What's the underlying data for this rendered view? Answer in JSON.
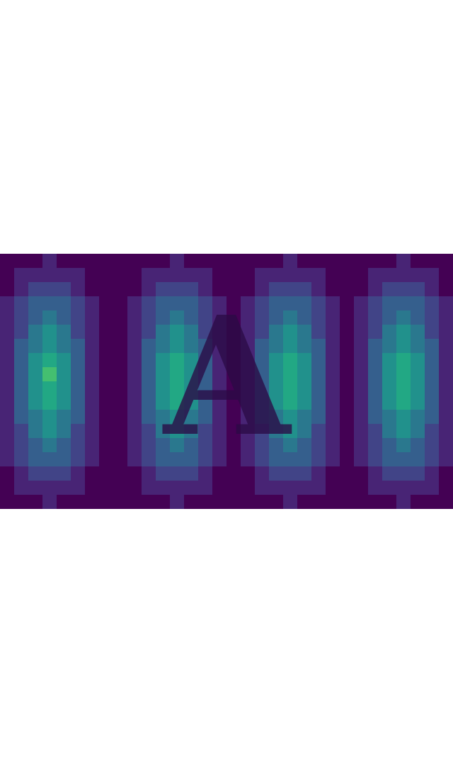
{
  "chart_data": {
    "type": "heatmap",
    "annotation": "A",
    "xlim": [
      0,
      32
    ],
    "ylim": [
      0,
      18
    ],
    "zlim": [
      0,
      10
    ],
    "tick_labels": false,
    "cells": [
      [
        0,
        0,
        0,
        1,
        0,
        0,
        0,
        0,
        0,
        0,
        0,
        0,
        1,
        0,
        0,
        0,
        0,
        0,
        0,
        0,
        1,
        0,
        0,
        0,
        0,
        0,
        0,
        0,
        1,
        0,
        0,
        0
      ],
      [
        0,
        1,
        1,
        1,
        1,
        1,
        0,
        0,
        0,
        0,
        1,
        1,
        1,
        1,
        1,
        0,
        0,
        0,
        1,
        1,
        1,
        1,
        1,
        0,
        0,
        0,
        1,
        1,
        1,
        1,
        1,
        0
      ],
      [
        0,
        1,
        2,
        2,
        2,
        1,
        0,
        0,
        0,
        0,
        1,
        2,
        2,
        2,
        1,
        0,
        0,
        0,
        1,
        2,
        2,
        2,
        1,
        0,
        0,
        0,
        1,
        2,
        2,
        2,
        1,
        0
      ],
      [
        1,
        2,
        3,
        3,
        3,
        2,
        1,
        0,
        0,
        1,
        2,
        3,
        3,
        3,
        2,
        1,
        0,
        1,
        2,
        3,
        3,
        3,
        2,
        1,
        0,
        1,
        2,
        3,
        3,
        3,
        2,
        1
      ],
      [
        1,
        2,
        3,
        4,
        3,
        2,
        1,
        0,
        0,
        1,
        2,
        3,
        4,
        3,
        2,
        1,
        0,
        1,
        2,
        3,
        4,
        3,
        2,
        1,
        0,
        1,
        2,
        3,
        4,
        3,
        2,
        1
      ],
      [
        1,
        2,
        4,
        5,
        4,
        2,
        1,
        0,
        0,
        1,
        2,
        4,
        5,
        4,
        2,
        1,
        0,
        1,
        2,
        4,
        5,
        4,
        2,
        1,
        0,
        1,
        2,
        4,
        5,
        4,
        2,
        1
      ],
      [
        1,
        3,
        4,
        5,
        4,
        3,
        1,
        0,
        0,
        1,
        3,
        4,
        5,
        4,
        3,
        1,
        0,
        1,
        3,
        4,
        5,
        4,
        3,
        1,
        0,
        1,
        3,
        4,
        5,
        4,
        3,
        1
      ],
      [
        1,
        3,
        5,
        6,
        5,
        3,
        1,
        0,
        0,
        1,
        3,
        5,
        6,
        5,
        3,
        1,
        0,
        1,
        3,
        5,
        6,
        5,
        3,
        1,
        0,
        1,
        3,
        5,
        6,
        5,
        3,
        1
      ],
      [
        1,
        3,
        5,
        7,
        5,
        3,
        1,
        0,
        0,
        1,
        3,
        5,
        6,
        5,
        3,
        1,
        0,
        1,
        3,
        5,
        6,
        5,
        3,
        1,
        0,
        1,
        3,
        5,
        6,
        5,
        3,
        1
      ],
      [
        1,
        3,
        5,
        6,
        5,
        3,
        1,
        0,
        0,
        1,
        3,
        5,
        6,
        5,
        3,
        1,
        0,
        1,
        3,
        5,
        6,
        5,
        3,
        1,
        0,
        1,
        3,
        5,
        6,
        5,
        3,
        1
      ],
      [
        1,
        3,
        5,
        6,
        5,
        3,
        1,
        0,
        0,
        1,
        3,
        5,
        6,
        5,
        3,
        1,
        0,
        1,
        3,
        5,
        6,
        5,
        3,
        1,
        0,
        1,
        3,
        5,
        6,
        5,
        3,
        1
      ],
      [
        1,
        3,
        4,
        5,
        4,
        3,
        1,
        0,
        0,
        1,
        3,
        4,
        5,
        4,
        3,
        1,
        0,
        1,
        3,
        4,
        5,
        4,
        3,
        1,
        0,
        1,
        3,
        4,
        5,
        4,
        3,
        1
      ],
      [
        1,
        2,
        4,
        5,
        4,
        2,
        1,
        0,
        0,
        1,
        2,
        4,
        5,
        4,
        2,
        1,
        0,
        1,
        2,
        4,
        5,
        4,
        2,
        1,
        0,
        1,
        2,
        4,
        5,
        4,
        2,
        1
      ],
      [
        1,
        2,
        3,
        4,
        3,
        2,
        1,
        0,
        0,
        1,
        2,
        3,
        4,
        3,
        2,
        1,
        0,
        1,
        2,
        3,
        4,
        3,
        2,
        1,
        0,
        1,
        2,
        3,
        4,
        3,
        2,
        1
      ],
      [
        1,
        2,
        3,
        3,
        3,
        2,
        1,
        0,
        0,
        1,
        2,
        3,
        3,
        3,
        2,
        1,
        0,
        1,
        2,
        3,
        3,
        3,
        2,
        1,
        0,
        1,
        2,
        3,
        3,
        3,
        2,
        1
      ],
      [
        0,
        1,
        2,
        2,
        2,
        1,
        0,
        0,
        0,
        0,
        1,
        2,
        2,
        2,
        1,
        0,
        0,
        0,
        1,
        2,
        2,
        2,
        1,
        0,
        0,
        0,
        1,
        2,
        2,
        2,
        1,
        0
      ],
      [
        0,
        1,
        1,
        1,
        1,
        1,
        0,
        0,
        0,
        0,
        1,
        1,
        1,
        1,
        1,
        0,
        0,
        0,
        1,
        1,
        1,
        1,
        1,
        0,
        0,
        0,
        1,
        1,
        1,
        1,
        1,
        0
      ],
      [
        0,
        0,
        0,
        1,
        0,
        0,
        0,
        0,
        0,
        0,
        0,
        0,
        1,
        0,
        0,
        0,
        0,
        0,
        0,
        0,
        1,
        0,
        0,
        0,
        0,
        0,
        0,
        0,
        1,
        0,
        0,
        0
      ]
    ]
  }
}
